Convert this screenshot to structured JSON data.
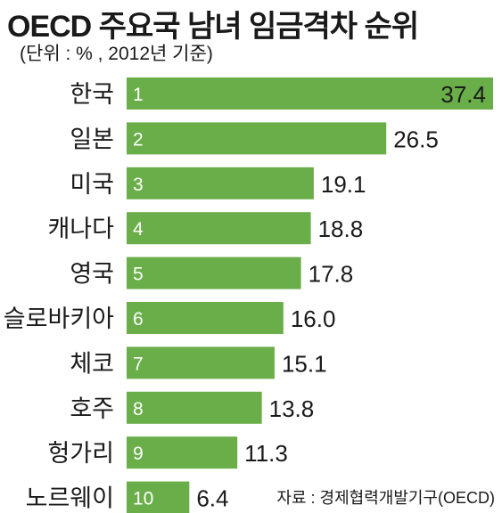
{
  "chart_data": {
    "type": "bar",
    "orientation": "horizontal",
    "title": "OECD 주요국 남녀 임금격차 순위",
    "subtitle": "(단위 : % , 2012년 기준)",
    "source": "자료 : 경제협력개발기구(OECD)",
    "categories": [
      "한국",
      "일본",
      "미국",
      "캐나다",
      "영국",
      "슬로바키아",
      "체코",
      "호주",
      "헝가리",
      "노르웨이"
    ],
    "ranks": [
      "1",
      "2",
      "3",
      "4",
      "5",
      "6",
      "7",
      "8",
      "9",
      "10"
    ],
    "values": [
      37.4,
      26.5,
      19.1,
      18.8,
      17.8,
      16.0,
      15.1,
      13.8,
      11.3,
      6.4
    ],
    "value_labels": [
      "37.4",
      "26.5",
      "19.1",
      "18.8",
      "17.8",
      "16.0",
      "15.1",
      "13.8",
      "11.3",
      "6.4"
    ],
    "xlim": [
      0,
      37.4
    ],
    "bar_color": "#6aae4a",
    "grid": false,
    "legend": "none"
  }
}
